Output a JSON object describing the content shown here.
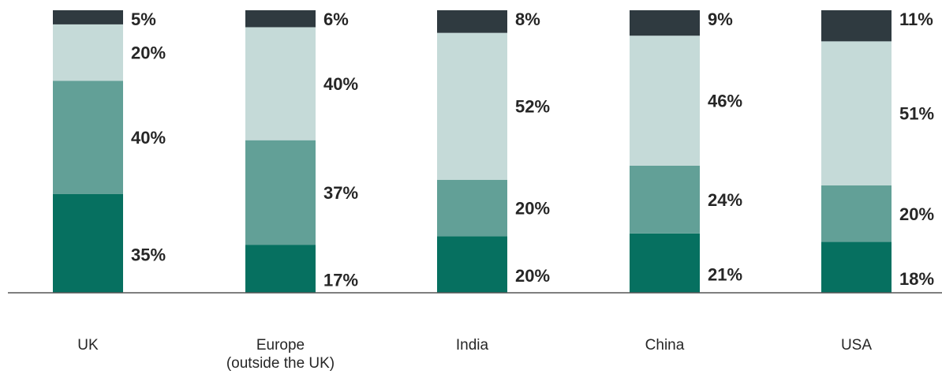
{
  "chart_data": {
    "type": "bar",
    "stacked": true,
    "categories": [
      "UK",
      "Europe\n(outside the UK)",
      "India",
      "China",
      "USA"
    ],
    "series": [
      {
        "values": [
          35,
          17,
          20,
          21,
          18
        ],
        "labels": [
          "35%",
          "17%",
          "20%",
          "21%",
          "18%"
        ],
        "color": "#067060"
      },
      {
        "values": [
          40,
          37,
          20,
          24,
          20
        ],
        "labels": [
          "40%",
          "37%",
          "20%",
          "24%",
          "20%"
        ],
        "color": "#62a097"
      },
      {
        "values": [
          20,
          40,
          52,
          46,
          51
        ],
        "labels": [
          "20%",
          "40%",
          "52%",
          "46%",
          "51%"
        ],
        "color": "#c5dad8"
      },
      {
        "values": [
          5,
          6,
          8,
          9,
          11
        ],
        "labels": [
          "5%",
          "6%",
          "8%",
          "9%",
          "11%"
        ],
        "color": "#2f3a40"
      }
    ],
    "legend": "none",
    "grid": false
  }
}
